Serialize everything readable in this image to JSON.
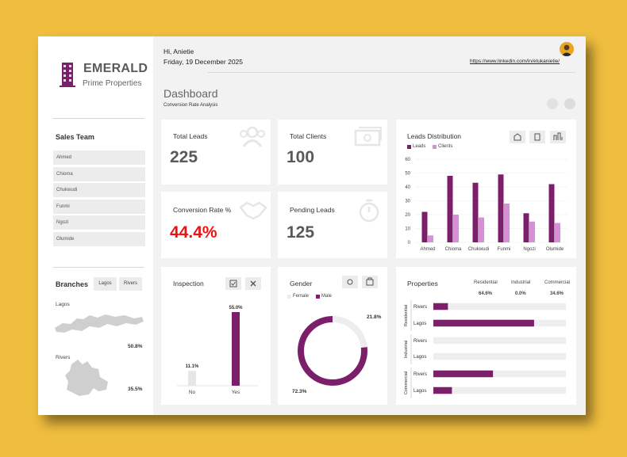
{
  "colors": {
    "background": "#F0BE3E",
    "primary": "#7B1F6B",
    "secondary": "#D98FD8",
    "alert": "#EE1111",
    "panel": "#F2F2F2"
  },
  "brand": {
    "name": "EMERALD",
    "subtitle": "Prime Properties"
  },
  "sidebar": {
    "sales_team_title": "Sales Team",
    "team": [
      "Ahmed",
      "Chioma",
      "Chukwudi",
      "Funmi",
      "Ngozi",
      "Olumide"
    ],
    "branches_title": "Branches",
    "branch_buttons": [
      "Lagos",
      "Rivers"
    ],
    "maps": [
      {
        "name": "Lagos",
        "percent": "50.8%"
      },
      {
        "name": "Rivers",
        "percent": "35.5%"
      }
    ]
  },
  "header": {
    "greeting": "Hi, Anietie",
    "date": "Friday, 19 December 2025",
    "link": "https://www.linkedin.com/in/etukanietie/",
    "title": "Dashboard",
    "subtitle": "Conversion Rate Analysis"
  },
  "kpis": {
    "total_leads": {
      "label": "Total Leads",
      "value": "225"
    },
    "total_clients": {
      "label": "Total Clients",
      "value": "100"
    },
    "conversion_rate": {
      "label": "Conversion Rate %",
      "value": "44.4%"
    },
    "pending_leads": {
      "label": "Pending Leads",
      "value": "125"
    }
  },
  "leads_distribution": {
    "title": "Leads Distribution",
    "legend": [
      "Leads",
      "Clients"
    ],
    "icons": [
      "house-icon",
      "building-icon",
      "city-icon"
    ]
  },
  "inspection": {
    "title": "Inspection",
    "icons": [
      "checkbox-icon",
      "close-icon"
    ]
  },
  "gender": {
    "title": "Gender",
    "legend": [
      "Female",
      "Male"
    ],
    "icons": [
      "female-icon",
      "male-icon"
    ]
  },
  "properties": {
    "title": "Properties",
    "summary": [
      {
        "label": "Residential",
        "value": "64.6%"
      },
      {
        "label": "Industrial",
        "value": "0.0%"
      },
      {
        "label": "Commercial",
        "value": "34.6%"
      }
    ]
  },
  "chart_data": [
    {
      "type": "bar",
      "title": "Leads Distribution",
      "categories": [
        "Ahmed",
        "Chioma",
        "Chukwudi",
        "Funmi",
        "Ngozi",
        "Olumide"
      ],
      "series": [
        {
          "name": "Leads",
          "values": [
            22,
            48,
            43,
            49,
            21,
            42
          ],
          "color": "#7B1F6B"
        },
        {
          "name": "Clients",
          "values": [
            5,
            20,
            18,
            28,
            15,
            14
          ],
          "color": "#D98FD8"
        }
      ],
      "ylim": [
        0,
        60
      ],
      "yticks": [
        0,
        10,
        20,
        30,
        40,
        50,
        60
      ],
      "grid": true,
      "legend": "top-left"
    },
    {
      "type": "bar",
      "title": "Inspection",
      "categories": [
        "No",
        "Yes"
      ],
      "values": [
        11.1,
        55.0
      ],
      "labels": [
        "11.1%",
        "55.0%"
      ],
      "colors": [
        "#E6E6E6",
        "#7B1F6B"
      ]
    },
    {
      "type": "pie",
      "title": "Gender",
      "labels": [
        "Female",
        "Male"
      ],
      "values": [
        21.8,
        72.3
      ],
      "value_labels": [
        "21.8%",
        "72.3%"
      ],
      "colors": [
        "#EDEDED",
        "#7B1F6B"
      ]
    },
    {
      "type": "bar",
      "title": "Properties",
      "orientation": "horizontal",
      "groups": [
        {
          "name": "Residential",
          "rows": [
            {
              "label": "Rivers",
              "value": 0.11
            },
            {
              "label": "Lagos",
              "value": 0.76
            }
          ]
        },
        {
          "name": "Industrial",
          "rows": [
            {
              "label": "Rivers",
              "value": 0
            },
            {
              "label": "Lagos",
              "value": 0
            }
          ]
        },
        {
          "name": "Commercial",
          "rows": [
            {
              "label": "Rivers",
              "value": 0.45
            },
            {
              "label": "Lagos",
              "value": 0.14
            }
          ]
        }
      ]
    }
  ]
}
